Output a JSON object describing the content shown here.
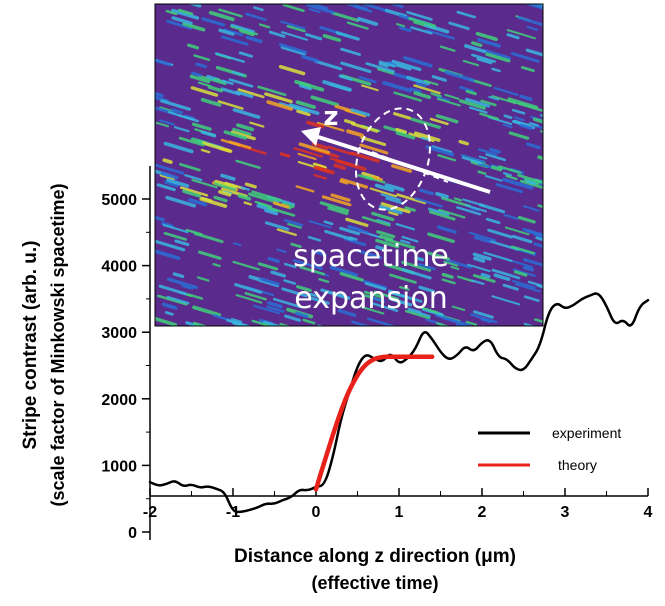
{
  "chart_data": {
    "type": "line",
    "xlabel_line1": "Distance along z direction (μm)",
    "xlabel_line2": "(effective time)",
    "ylabel_line1": "Stripe contrast (arb. u.)",
    "ylabel_line2": "(scale factor of Minkowski spacetime)",
    "xlim": [
      -2,
      4
    ],
    "ylim": [
      -300,
      5500
    ],
    "x_ticks": [
      {
        "value": -2,
        "label": "-2"
      },
      {
        "value": -1,
        "label": "-1"
      },
      {
        "value": 0,
        "label": "0"
      },
      {
        "value": 1,
        "label": "1"
      },
      {
        "value": 2,
        "label": "2"
      },
      {
        "value": 3,
        "label": "3"
      },
      {
        "value": 4,
        "label": "4"
      }
    ],
    "y_ticks": [
      {
        "value": 0,
        "label": "0"
      },
      {
        "value": 1000,
        "label": "1000"
      },
      {
        "value": 2000,
        "label": "2000"
      },
      {
        "value": 3000,
        "label": "3000"
      },
      {
        "value": 4000,
        "label": "4000"
      },
      {
        "value": 5000,
        "label": "5000"
      }
    ],
    "series": [
      {
        "name": "experiment",
        "color": "#000000",
        "x": [
          -2.0,
          -1.9,
          -1.8,
          -1.7,
          -1.6,
          -1.5,
          -1.4,
          -1.3,
          -1.2,
          -1.1,
          -1.0,
          -0.9,
          -0.8,
          -0.7,
          -0.6,
          -0.5,
          -0.4,
          -0.3,
          -0.2,
          -0.1,
          0.0,
          0.1,
          0.2,
          0.3,
          0.4,
          0.5,
          0.6,
          0.7,
          0.8,
          0.9,
          1.0,
          1.1,
          1.2,
          1.3,
          1.4,
          1.5,
          1.6,
          1.7,
          1.8,
          1.9,
          2.0,
          2.1,
          2.2,
          2.3,
          2.4,
          2.5,
          2.6,
          2.7,
          2.8,
          2.9,
          3.0,
          3.1,
          3.2,
          3.3,
          3.4,
          3.5,
          3.6,
          3.7,
          3.8,
          3.9,
          4.0
        ],
        "y": [
          750,
          690,
          720,
          780,
          680,
          720,
          660,
          690,
          650,
          600,
          300,
          300,
          330,
          370,
          430,
          420,
          480,
          520,
          640,
          620,
          680,
          700,
          1100,
          1700,
          2100,
          2500,
          2680,
          2600,
          2550,
          2700,
          2520,
          2600,
          2750,
          3050,
          2900,
          2700,
          2580,
          2650,
          2800,
          2700,
          2850,
          2900,
          2620,
          2600,
          2450,
          2420,
          2600,
          2800,
          3300,
          3450,
          3350,
          3400,
          3500,
          3550,
          3600,
          3400,
          3100,
          3200,
          3050,
          3400,
          3480
        ]
      },
      {
        "name": "theory",
        "color": "#e8211b",
        "x": [
          0.0,
          0.1,
          0.2,
          0.3,
          0.4,
          0.5,
          0.6,
          0.7,
          0.8,
          0.9,
          1.0,
          1.1,
          1.2,
          1.3,
          1.4
        ],
        "y": [
          640,
          1050,
          1450,
          1820,
          2130,
          2360,
          2520,
          2600,
          2630,
          2630,
          2630,
          2630,
          2630,
          2630,
          2630
        ]
      }
    ],
    "legend": {
      "placement": "right",
      "entries": [
        {
          "label": "experiment",
          "color": "#000000"
        },
        {
          "label": "theory",
          "color": "#e8211b"
        }
      ]
    },
    "inset": {
      "label_axis": "z",
      "caption_line1": "spacetime",
      "caption_line2": "expansion",
      "background": "#5a2a8c"
    }
  }
}
